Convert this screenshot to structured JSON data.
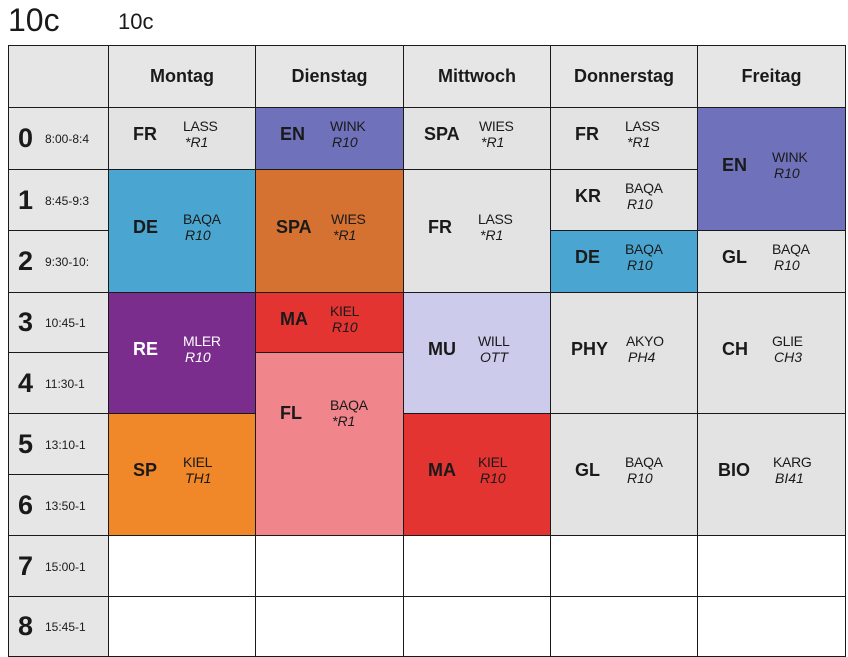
{
  "header": {
    "title_large": "10c",
    "title_small": "10c"
  },
  "colors": {
    "grid_line": "#1a1a1a",
    "header_bg": "#e6e6e6",
    "grey": "#e3e3e3",
    "indigo": "#6f72ba",
    "blue": "#4aa6d0",
    "brown": "#d57131",
    "purple": "#7b2d8e",
    "red": "#e43432",
    "pink": "#f0858c",
    "lavender": "#cccbeb",
    "orange": "#f08728",
    "white": "#ffffff"
  },
  "days": [
    {
      "key": "mo",
      "label": "Montag"
    },
    {
      "key": "di",
      "label": "Dienstag"
    },
    {
      "key": "mi",
      "label": "Mittwoch"
    },
    {
      "key": "do",
      "label": "Donnerstag"
    },
    {
      "key": "fr",
      "label": "Freitag"
    }
  ],
  "periods": [
    {
      "number": "0",
      "time": "8:00-8:4"
    },
    {
      "number": "1",
      "time": "8:45-9:3"
    },
    {
      "number": "2",
      "time": "9:30-10:"
    },
    {
      "number": "3",
      "time": "10:45-1"
    },
    {
      "number": "4",
      "time": "11:30-1"
    },
    {
      "number": "5",
      "time": "13:10-1"
    },
    {
      "number": "6",
      "time": "13:50-1"
    },
    {
      "number": "7",
      "time": "15:00-1"
    },
    {
      "number": "8",
      "time": "15:45-1"
    }
  ],
  "lessons": [
    {
      "day": 0,
      "start": 0,
      "span": 1,
      "subject": "FR",
      "teacher": "LASS",
      "room": "*R1",
      "color": "grey"
    },
    {
      "day": 0,
      "start": 1,
      "span": 2,
      "subject": "DE",
      "teacher": "BAQA",
      "room": "R10",
      "color": "blue"
    },
    {
      "day": 0,
      "start": 3,
      "span": 2,
      "subject": "RE",
      "teacher": "MLER",
      "room": "R10",
      "color": "purple",
      "light": true
    },
    {
      "day": 0,
      "start": 5,
      "span": 2,
      "subject": "SP",
      "teacher": "KIEL",
      "room": "TH1",
      "color": "orange"
    },
    {
      "day": 1,
      "start": 0,
      "span": 1,
      "subject": "EN",
      "teacher": "WINK",
      "room": "R10",
      "color": "indigo"
    },
    {
      "day": 1,
      "start": 1,
      "span": 2,
      "subject": "SPA",
      "teacher": "WIES",
      "room": "*R1",
      "color": "brown"
    },
    {
      "day": 1,
      "start": 3,
      "span": 1,
      "subject": "MA",
      "teacher": "KIEL",
      "room": "R10",
      "color": "red"
    },
    {
      "day": 1,
      "start": 4,
      "span": 3,
      "subject": "FL",
      "teacher": "BAQA",
      "room": "*R1",
      "color": "pink"
    },
    {
      "day": 2,
      "start": 0,
      "span": 1,
      "subject": "SPA",
      "teacher": "WIES",
      "room": "*R1",
      "color": "grey"
    },
    {
      "day": 2,
      "start": 1,
      "span": 2,
      "subject": "FR",
      "teacher": "LASS",
      "room": "*R1",
      "color": "grey"
    },
    {
      "day": 2,
      "start": 3,
      "span": 2,
      "subject": "MU",
      "teacher": "WILL",
      "room": "OTT",
      "color": "lavender"
    },
    {
      "day": 2,
      "start": 5,
      "span": 2,
      "subject": "MA",
      "teacher": "KIEL",
      "room": "R10",
      "color": "red"
    },
    {
      "day": 3,
      "start": 0,
      "span": 1,
      "subject": "FR",
      "teacher": "LASS",
      "room": "*R1",
      "color": "grey"
    },
    {
      "day": 3,
      "start": 1,
      "span": 1,
      "subject": "KR",
      "teacher": "BAQA",
      "room": "R10",
      "color": "grey"
    },
    {
      "day": 3,
      "start": 2,
      "span": 1,
      "subject": "DE",
      "teacher": "BAQA",
      "room": "R10",
      "color": "blue"
    },
    {
      "day": 3,
      "start": 3,
      "span": 2,
      "subject": "PHY",
      "teacher": "AKYO",
      "room": "PH4",
      "color": "grey"
    },
    {
      "day": 3,
      "start": 5,
      "span": 2,
      "subject": "GL",
      "teacher": "BAQA",
      "room": "R10",
      "color": "grey"
    },
    {
      "day": 4,
      "start": 0,
      "span": 2,
      "subject": "EN",
      "teacher": "WINK",
      "room": "R10",
      "color": "indigo"
    },
    {
      "day": 4,
      "start": 2,
      "span": 1,
      "subject": "GL",
      "teacher": "BAQA",
      "room": "R10",
      "color": "grey"
    },
    {
      "day": 4,
      "start": 3,
      "span": 2,
      "subject": "CH",
      "teacher": "GLIE",
      "room": "CH3",
      "color": "grey"
    },
    {
      "day": 4,
      "start": 5,
      "span": 2,
      "subject": "BIO",
      "teacher": "KARG",
      "room": "BI41",
      "color": "grey"
    }
  ]
}
